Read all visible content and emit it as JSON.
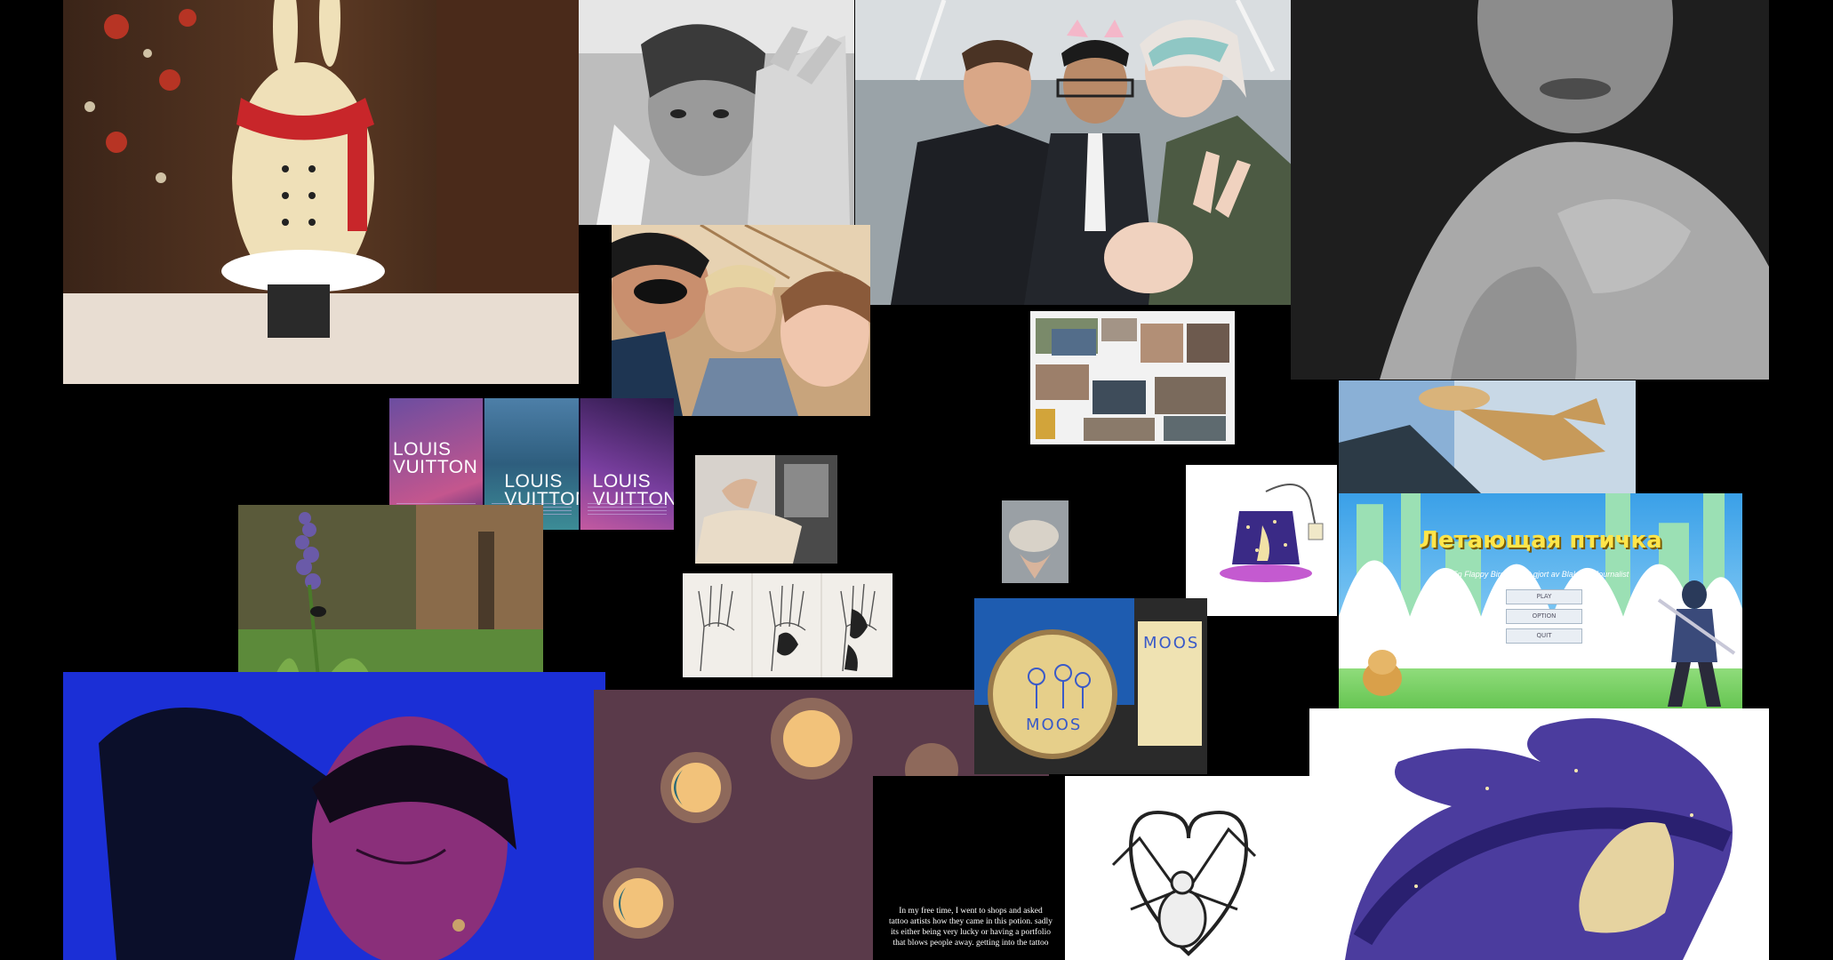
{
  "collage": {
    "louis_vuitton": {
      "brand_labels": [
        "LOUIS\nVUITTON",
        "LOUIS\nVUITTON",
        "LOUIS\nVUITTON"
      ]
    },
    "embroidery": {
      "hoop_text": "MOOS",
      "paper_text": "MOOS"
    },
    "flappy_game": {
      "title": "Летающая птичка",
      "subtitle": "En Flappy Bird projekt gjort av BlakletheJournalist",
      "buttons": [
        "PLAY",
        "OPTION",
        "QUIT"
      ]
    },
    "tattoo_spread": {
      "text": "In my free time, I went to shops and asked tattoo artists how they came in this potion. sadly its either being very lucky or having a portfolio that blows people away. getting into the tattoo"
    }
  },
  "colors": {
    "background": "#000000",
    "blue_portrait": "#1b2fd6",
    "sun_moon_bg": "#5a3a4a",
    "game_title": "#ffe54a",
    "galaxy": "#4b3c9e"
  }
}
